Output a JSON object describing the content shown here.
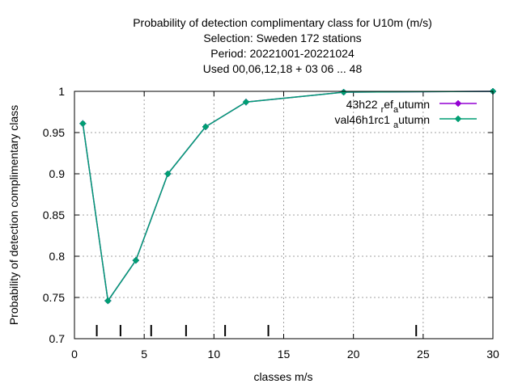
{
  "chart_data": {
    "type": "line",
    "title_lines": [
      "Probability of detection complimentary class  for U10m (m/s)",
      "Selection: Sweden    172 stations",
      "Period: 20221001-20221024",
      "Used  00,06,12,18  + 03 06 ... 48"
    ],
    "xlabel": "classes m/s",
    "ylabel": "Probability of detection complimentary class",
    "xlim": [
      0,
      30
    ],
    "ylim": [
      0.7,
      1.0
    ],
    "xticks": [
      0,
      5,
      10,
      15,
      20,
      25,
      30
    ],
    "yticks": [
      0.7,
      0.75,
      0.8,
      0.85,
      0.9,
      0.95,
      1.0
    ],
    "ytick_labels": [
      "0.7",
      "0.75",
      "0.8",
      "0.85",
      "0.9",
      "0.95",
      "1"
    ],
    "grid": true,
    "legend_position": "top-right",
    "class_marks": [
      1.6,
      3.3,
      5.5,
      8.0,
      10.8,
      13.9,
      24.5
    ],
    "series": [
      {
        "name": "43h22",
        "legend_sub": "r",
        "legend_mid": "ef",
        "legend_sub2": "a",
        "legend_tail": "utumn",
        "color": "#9400d3",
        "x": [
          0.6,
          2.4,
          4.4,
          6.7,
          9.4,
          12.3,
          19.3,
          30
        ],
        "y": [
          0.961,
          0.746,
          0.795,
          0.9,
          0.957,
          0.987,
          0.999,
          1.0
        ]
      },
      {
        "name": "val46h1rc1",
        "legend_sub": "a",
        "legend_tail": "utumn",
        "color": "#009e73",
        "x": [
          0.6,
          2.4,
          4.4,
          6.7,
          9.4,
          12.3,
          19.3,
          30
        ],
        "y": [
          0.961,
          0.746,
          0.795,
          0.9,
          0.957,
          0.987,
          0.999,
          1.0
        ]
      }
    ]
  }
}
